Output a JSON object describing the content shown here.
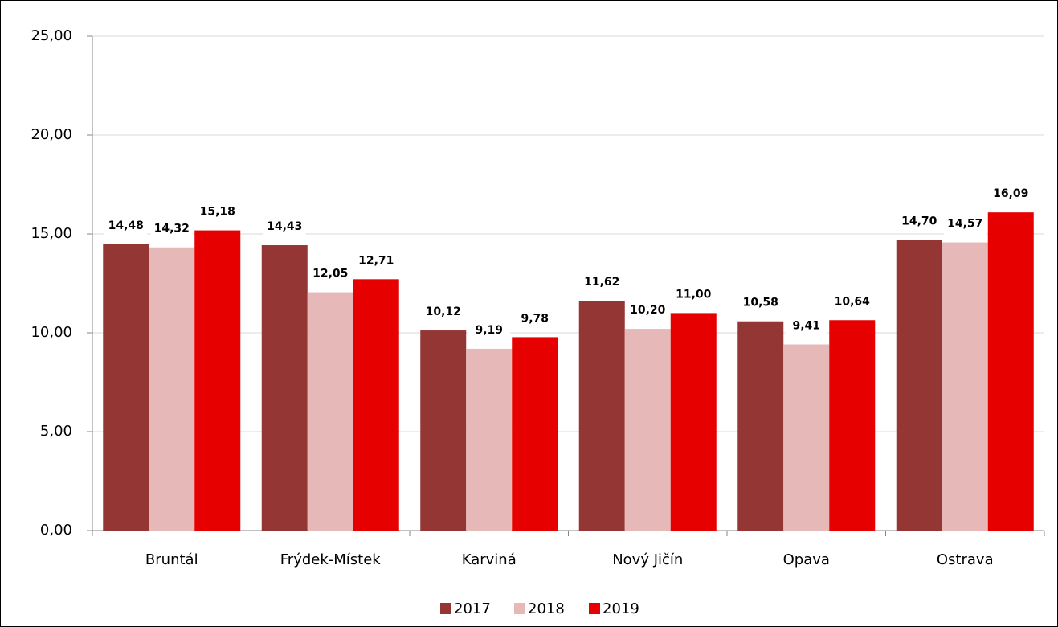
{
  "chart_data": {
    "type": "bar",
    "categories": [
      "Bruntál",
      "Frýdek-Místek",
      "Karviná",
      "Nový Jičín",
      "Opava",
      "Ostrava"
    ],
    "series": [
      {
        "name": "2017",
        "color": "#943634",
        "values": [
          14.48,
          14.43,
          10.12,
          11.62,
          10.58,
          14.7
        ],
        "value_labels": [
          "14,48",
          "14,43",
          "10,12",
          "11,62",
          "10,58",
          "14,70"
        ]
      },
      {
        "name": "2018",
        "color": "#e6b9b8",
        "values": [
          14.32,
          12.05,
          9.19,
          10.2,
          9.41,
          14.57
        ],
        "value_labels": [
          "14,32",
          "12,05",
          "9,19",
          "10,20",
          "9,41",
          "14,57"
        ]
      },
      {
        "name": "2019",
        "color": "#e60000",
        "values": [
          15.18,
          12.71,
          9.78,
          11.0,
          10.64,
          16.09
        ],
        "value_labels": [
          "15,18",
          "12,71",
          "9,78",
          "11,00",
          "10,64",
          "16,09"
        ]
      }
    ],
    "ylim": [
      0,
      25
    ],
    "yticks": [
      {
        "value": 0,
        "label": "0,00"
      },
      {
        "value": 5,
        "label": "5,00"
      },
      {
        "value": 10,
        "label": "10,00"
      },
      {
        "value": 15,
        "label": "15,00"
      },
      {
        "value": 20,
        "label": "20,00"
      },
      {
        "value": 25,
        "label": "25,00"
      }
    ],
    "grid": true,
    "legend": "bottom"
  }
}
